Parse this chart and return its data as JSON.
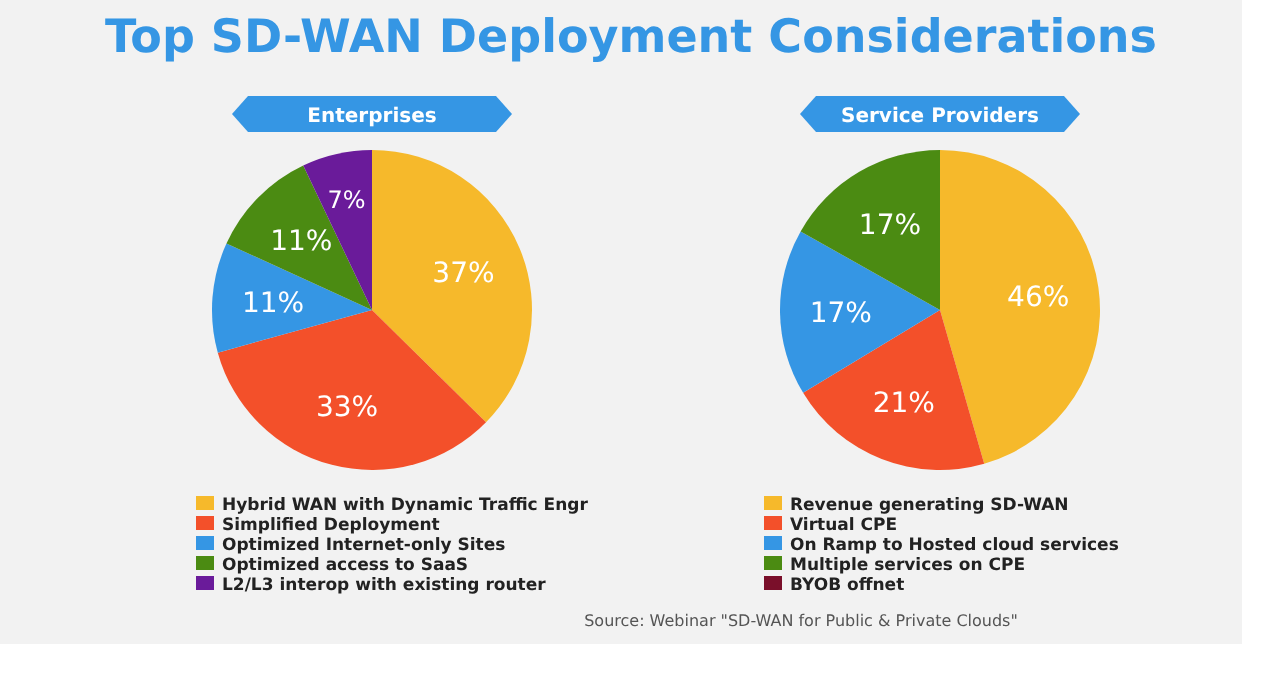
{
  "chart_data": [
    {
      "type": "pie",
      "title": "Top SD-WAN Deployment Considerations",
      "subtitle": "Enterprises",
      "categories": [
        "Hybrid WAN with Dynamic Traffic Engr",
        "Simplified Deployment",
        "Optimized Internet-only Sites",
        "Optimized access to SaaS",
        "L2/L3 interop with existing router"
      ],
      "values": [
        37,
        33,
        11,
        11,
        7
      ],
      "value_labels": [
        "37%",
        "33%",
        "11%",
        "11%",
        "7%"
      ],
      "colors": [
        "#f6b92b",
        "#f3502a",
        "#3596e4",
        "#4b8b12",
        "#6a1b9a"
      ],
      "legend": "bottom"
    },
    {
      "type": "pie",
      "subtitle": "Service Providers",
      "categories": [
        "Revenue generating SD-WAN",
        "Virtual CPE",
        "On Ramp to Hosted cloud services",
        "Multiple services on CPE",
        "BYOB offnet"
      ],
      "values": [
        46,
        21,
        17,
        17,
        0
      ],
      "value_labels": [
        "46%",
        "21%",
        "17%",
        "17%",
        null
      ],
      "colors": [
        "#f6b92b",
        "#f3502a",
        "#3596e4",
        "#4b8b12",
        "#7a0f2a"
      ],
      "legend": "bottom",
      "annotations": [
        "Source: Webinar \"SD-WAN for Public & Private Clouds\""
      ]
    }
  ]
}
